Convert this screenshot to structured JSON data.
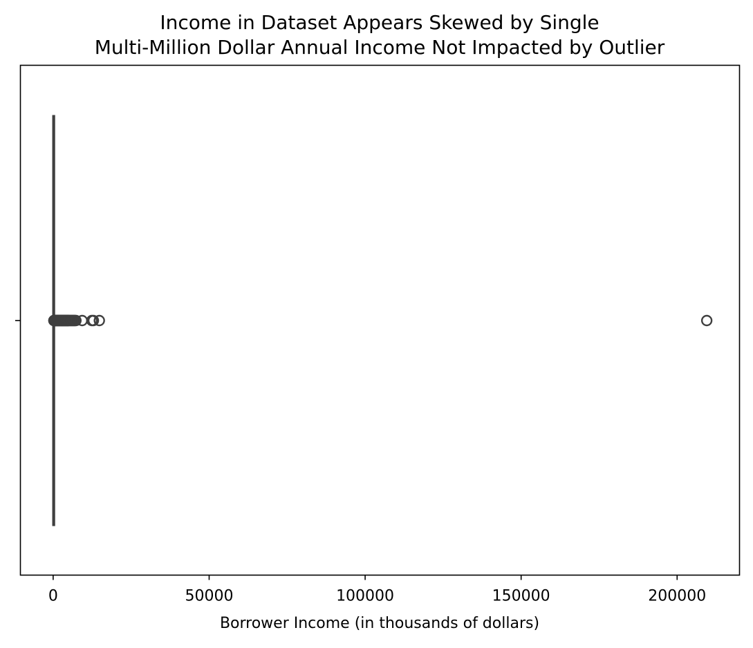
{
  "chart_data": {
    "type": "box",
    "orientation": "horizontal",
    "title_lines": [
      "Income in Dataset Appears Skewed by Single",
      "Multi-Million Dollar Annual Income Not Impacted by Outlier"
    ],
    "xlabel": "Borrower Income (in thousands of dollars)",
    "ylabel": "",
    "xlim": [
      -10500,
      220000
    ],
    "x_ticks": [
      0,
      50000,
      100000,
      150000,
      200000
    ],
    "x_tick_labels": [
      "0",
      "50000",
      "100000",
      "150000",
      "200000"
    ],
    "grid": false,
    "box": {
      "whisker_low": 0,
      "q1": 40,
      "median": 70,
      "q3": 110,
      "whisker_high": 215
    },
    "outliers": [
      230,
      250,
      280,
      300,
      330,
      360,
      400,
      450,
      500,
      550,
      600,
      650,
      700,
      750,
      800,
      850,
      900,
      950,
      1000,
      1100,
      1200,
      1300,
      1400,
      1500,
      1600,
      1700,
      1800,
      1900,
      2000,
      2100,
      2200,
      2300,
      2400,
      2500,
      2600,
      2700,
      2800,
      2900,
      3000,
      3100,
      3200,
      3300,
      3400,
      3500,
      3600,
      3700,
      3800,
      3900,
      4000,
      4100,
      4200,
      4300,
      4400,
      4500,
      4600,
      4700,
      4800,
      4900,
      5000,
      5200,
      5400,
      5600,
      5800,
      6000,
      6200,
      6400,
      6600,
      6800,
      7000,
      7300,
      9300,
      12400,
      12900,
      14800,
      209500
    ],
    "colors": {
      "box_line": "#3f3f3f",
      "axis": "#000000",
      "background": "#ffffff"
    }
  }
}
